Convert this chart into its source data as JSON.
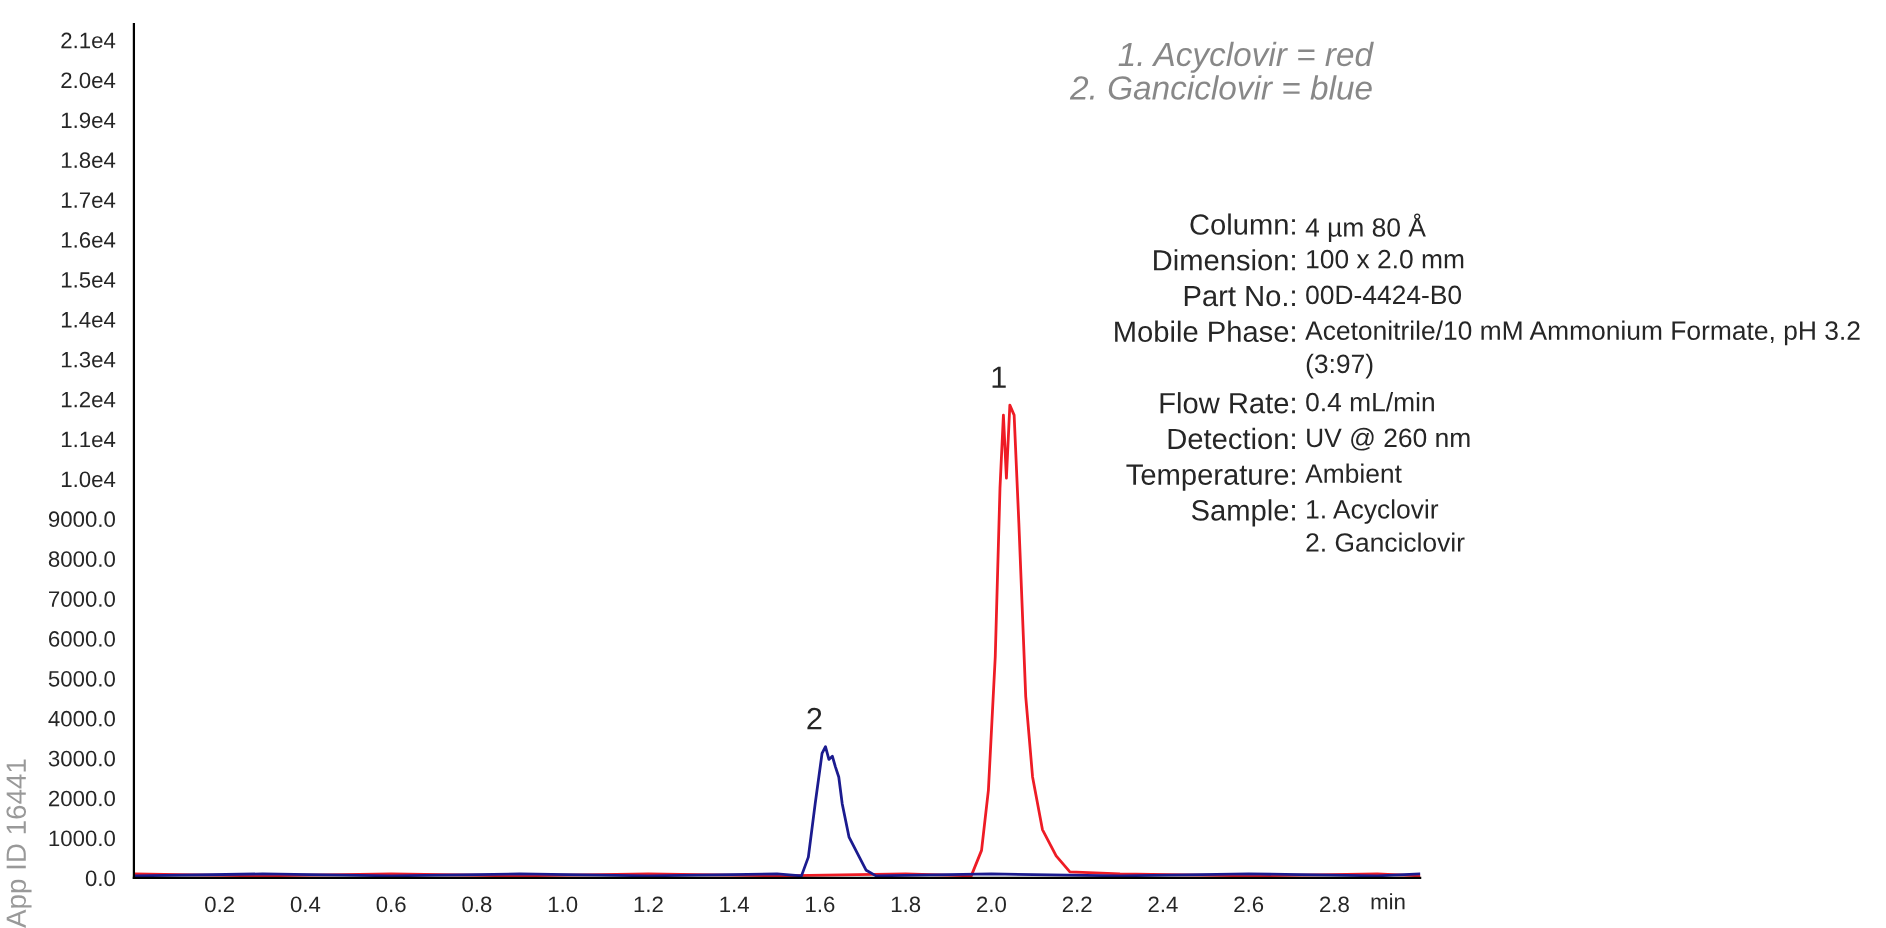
{
  "chart_data": {
    "type": "line",
    "series": [
      {
        "color": "#ee1c25",
        "x": [
          0,
          0.3,
          0.6,
          0.9,
          1.2,
          1.5,
          1.8,
          1.953,
          1.977,
          1.993,
          2.009,
          2.02,
          2.028,
          2.035,
          2.043,
          2.053,
          2.064,
          2.08,
          2.096,
          2.119,
          2.151,
          2.183,
          2.3,
          2.6,
          2.9,
          3.0
        ],
        "values": [
          100,
          50,
          100,
          50,
          100,
          50,
          100,
          50,
          690,
          2200,
          5550,
          9770,
          11600,
          10020,
          11850,
          11600,
          8900,
          4550,
          2530,
          1210,
          550,
          150,
          100,
          50,
          100,
          50
        ]
      },
      {
        "color": "#1b1b8f",
        "x": [
          0,
          0.3,
          0.6,
          0.9,
          1.2,
          1.5,
          1.557,
          1.573,
          1.589,
          1.605,
          1.613,
          1.621,
          1.629,
          1.636,
          1.644,
          1.652,
          1.668,
          1.692,
          1.708,
          1.731,
          2.0,
          2.3,
          2.6,
          2.9,
          3.0
        ],
        "values": [
          50,
          100,
          50,
          100,
          50,
          100,
          50,
          520,
          1860,
          3120,
          3290,
          2970,
          3050,
          2790,
          2530,
          1860,
          1020,
          520,
          190,
          50,
          100,
          50,
          100,
          50,
          100
        ]
      }
    ],
    "xlim": [
      0,
      3.0
    ],
    "xticks": [
      0.2,
      0.4,
      0.6,
      0.8,
      {
        "value": 1.0,
        "label": "1.0"
      },
      1.2,
      1.4,
      1.6,
      1.8,
      {
        "value": 2.0,
        "label": "2.0"
      },
      2.2,
      2.4,
      2.6,
      2.8
    ],
    "xlabel": "min",
    "ylim": [
      0,
      21400
    ],
    "yticks": [
      {
        "value": 0,
        "label": "0.0"
      },
      {
        "value": 1000,
        "label": "1000.0"
      },
      {
        "value": 2000,
        "label": "2000.0"
      },
      {
        "value": 3000,
        "label": "3000.0"
      },
      {
        "value": 4000,
        "label": "4000.0"
      },
      {
        "value": 5000,
        "label": "5000.0"
      },
      {
        "value": 6000,
        "label": "6000.0"
      },
      {
        "value": 7000,
        "label": "7000.0"
      },
      {
        "value": 8000,
        "label": "8000.0"
      },
      {
        "value": 9000,
        "label": "9000.0"
      },
      {
        "value": 10000,
        "label": "1.0e4"
      },
      {
        "value": 11000,
        "label": "1.1e4"
      },
      {
        "value": 12000,
        "label": "1.2e4"
      },
      {
        "value": 13000,
        "label": "1.3e4"
      },
      {
        "value": 14000,
        "label": "1.4e4"
      },
      {
        "value": 15000,
        "label": "1.5e4"
      },
      {
        "value": 16000,
        "label": "1.6e4"
      },
      {
        "value": 17000,
        "label": "1.7e4"
      },
      {
        "value": 18000,
        "label": "1.8e4"
      },
      {
        "value": 19000,
        "label": "1.9e4"
      },
      {
        "value": 20000,
        "label": "2.0e4"
      },
      {
        "value": 21000,
        "label": "2.1e4"
      }
    ],
    "grid": false,
    "legend": false,
    "annotations": [
      {
        "text": "1",
        "x": 2.043,
        "y": 11850
      },
      {
        "text": "2",
        "x": 1.613,
        "y": 3290
      },
      "1. Acyclovir = red\n2. Ganciclovir = blue",
      "Column: 4 µm 80 Å",
      "Dimension: 100 x 2.0 mm",
      "Part No.: 00D-4424-B0",
      "Mobile Phase: Acetonitrile/10 mM Ammonium Formate, pH 3.2\n(3:97)",
      "Flow Rate: 0.4 mL/min",
      "Detection: UV @ 260 nm",
      "Temperature: Ambient",
      "Sample: 1. Acyclovir\n2. Ganciclovir",
      "App ID 16441"
    ]
  }
}
